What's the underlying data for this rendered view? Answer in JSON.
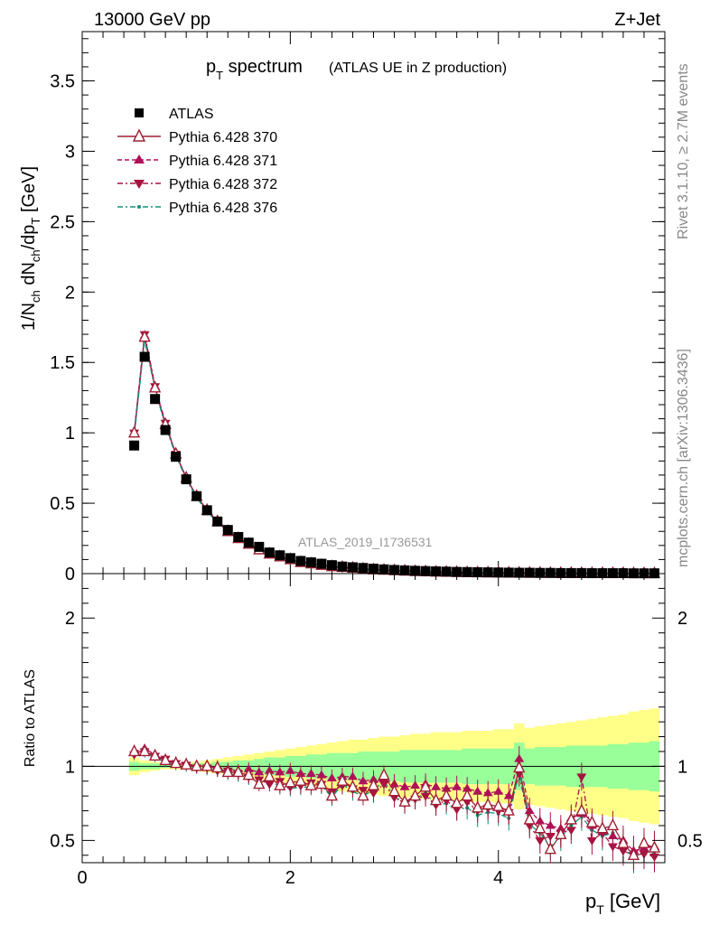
{
  "header": {
    "left": "13000 GeV pp",
    "right": "Z+Jet"
  },
  "side_labels": {
    "rivet": "Rivet 3.1.10, ≥ 2.7M events",
    "mcplots": "mcplots.cern.ch [arXiv:1306.3436]"
  },
  "analysis_id": "ATLAS_2019_I1736531",
  "colors": {
    "data": "#000000",
    "p370": "#a01f33",
    "p371": "#b0105a",
    "p372": "#a8123f",
    "p376": "#12907a",
    "band_inner": "#99ff99",
    "band_outer": "#ffff88"
  },
  "chart_data": [
    {
      "type": "scatter",
      "title_main": "p",
      "title_sub": "T",
      "title_rest": " spectrum",
      "title_note": "(ATLAS UE in Z production)",
      "ylabel": "1/N_ch dN_ch/dp_T [GeV]",
      "xlabel": "p_T [GeV]",
      "xlim": [
        0,
        5.6
      ],
      "ylim": [
        0,
        3.85
      ],
      "yticks": [
        "0",
        "0.5",
        "1",
        "1.5",
        "2",
        "2.5",
        "3",
        "3.5"
      ],
      "legend_position": "top-left",
      "x": [
        0.5,
        0.6,
        0.7,
        0.8,
        0.9,
        1.0,
        1.1,
        1.2,
        1.3,
        1.4,
        1.5,
        1.6,
        1.7,
        1.8,
        1.9,
        2.0,
        2.1,
        2.2,
        2.3,
        2.4,
        2.5,
        2.6,
        2.7,
        2.8,
        2.9,
        3.0,
        3.1,
        3.2,
        3.3,
        3.4,
        3.5,
        3.6,
        3.7,
        3.8,
        3.9,
        4.0,
        4.1,
        4.2,
        4.3,
        4.4,
        4.5,
        4.6,
        4.7,
        4.8,
        4.9,
        5.0,
        5.1,
        5.2,
        5.3,
        5.4,
        5.5
      ],
      "series": [
        {
          "name": "ATLAS",
          "values": [
            0.91,
            1.54,
            1.24,
            1.02,
            0.83,
            0.67,
            0.55,
            0.45,
            0.37,
            0.31,
            0.26,
            0.22,
            0.19,
            0.15,
            0.13,
            0.11,
            0.09,
            0.08,
            0.07,
            0.06,
            0.05,
            0.045,
            0.04,
            0.035,
            0.03,
            0.026,
            0.023,
            0.02,
            0.018,
            0.016,
            0.014,
            0.012,
            0.011,
            0.01,
            0.009,
            0.008,
            0.007,
            0.006,
            0.006,
            0.005,
            0.005,
            0.004,
            0.004,
            0.004,
            0.003,
            0.003,
            0.003,
            0.003,
            0.002,
            0.002,
            0.002
          ]
        },
        {
          "name": "Pythia 6.428 370",
          "values": [
            1.0,
            1.68,
            1.32,
            1.06,
            0.85,
            0.68,
            0.55,
            0.45,
            0.37,
            0.3,
            0.25,
            0.21,
            0.17,
            0.14,
            0.12,
            0.1,
            0.08,
            0.07,
            0.06,
            0.05,
            0.045,
            0.04,
            0.033,
            0.028,
            0.025,
            0.022,
            0.019,
            0.016,
            0.014,
            0.012,
            0.011,
            0.009,
            0.008,
            0.007,
            0.006,
            0.006,
            0.005,
            0.005,
            0.004,
            0.004,
            0.003,
            0.003,
            0.003,
            0.002,
            0.002,
            0.002,
            0.002,
            0.002,
            0.001,
            0.001,
            0.001
          ]
        },
        {
          "name": "Pythia 6.428 371",
          "values": [
            1.0,
            1.69,
            1.33,
            1.06,
            0.85,
            0.68,
            0.55,
            0.45,
            0.37,
            0.3,
            0.25,
            0.21,
            0.18,
            0.15,
            0.12,
            0.1,
            0.09,
            0.07,
            0.06,
            0.05,
            0.045,
            0.04,
            0.034,
            0.029,
            0.026,
            0.022,
            0.02,
            0.017,
            0.015,
            0.013,
            0.011,
            0.01,
            0.009,
            0.008,
            0.007,
            0.006,
            0.005,
            0.005,
            0.004,
            0.004,
            0.003,
            0.003,
            0.003,
            0.002,
            0.002,
            0.002,
            0.002,
            0.002,
            0.001,
            0.001,
            0.001
          ]
        },
        {
          "name": "Pythia 6.428 372",
          "values": [
            1.0,
            1.7,
            1.33,
            1.07,
            0.85,
            0.68,
            0.55,
            0.45,
            0.37,
            0.3,
            0.25,
            0.21,
            0.17,
            0.14,
            0.12,
            0.1,
            0.08,
            0.07,
            0.06,
            0.05,
            0.04,
            0.037,
            0.032,
            0.027,
            0.024,
            0.021,
            0.018,
            0.016,
            0.013,
            0.011,
            0.01,
            0.009,
            0.008,
            0.007,
            0.006,
            0.005,
            0.005,
            0.005,
            0.004,
            0.003,
            0.003,
            0.003,
            0.002,
            0.002,
            0.002,
            0.002,
            0.002,
            0.001,
            0.001,
            0.001,
            0.001
          ]
        },
        {
          "name": "Pythia 6.428 376",
          "values": [
            0.98,
            1.66,
            1.31,
            1.05,
            0.84,
            0.67,
            0.54,
            0.44,
            0.36,
            0.3,
            0.25,
            0.21,
            0.17,
            0.14,
            0.12,
            0.1,
            0.08,
            0.07,
            0.06,
            0.05,
            0.04,
            0.036,
            0.031,
            0.026,
            0.023,
            0.02,
            0.017,
            0.015,
            0.013,
            0.011,
            0.01,
            0.008,
            0.007,
            0.006,
            0.006,
            0.005,
            0.004,
            0.005,
            0.004,
            0.003,
            0.003,
            0.003,
            0.002,
            0.002,
            0.002,
            0.002,
            0.002,
            0.001,
            0.001,
            0.001,
            0.001
          ]
        }
      ]
    },
    {
      "type": "scatter",
      "ylabel": "Ratio to ATLAS",
      "xlim": [
        0,
        5.6
      ],
      "ylim": [
        0.35,
        2.3
      ],
      "yticks": [
        "0.5",
        "1",
        "2"
      ],
      "xticks": [
        "0",
        "2",
        "4"
      ],
      "x": [
        0.5,
        0.6,
        0.7,
        0.8,
        0.9,
        1.0,
        1.1,
        1.2,
        1.3,
        1.4,
        1.5,
        1.6,
        1.7,
        1.8,
        1.9,
        2.0,
        2.1,
        2.2,
        2.3,
        2.4,
        2.5,
        2.6,
        2.7,
        2.8,
        2.9,
        3.0,
        3.1,
        3.2,
        3.3,
        3.4,
        3.5,
        3.6,
        3.7,
        3.8,
        3.9,
        4.0,
        4.1,
        4.2,
        4.3,
        4.4,
        4.5,
        4.6,
        4.7,
        4.8,
        4.9,
        5.0,
        5.1,
        5.2,
        5.3,
        5.4,
        5.5
      ],
      "band_inner": {
        "lo": [
          0.97,
          0.98,
          0.98,
          0.99,
          0.99,
          0.99,
          0.98,
          0.98,
          0.97,
          0.97,
          0.96,
          0.96,
          0.95,
          0.94,
          0.94,
          0.93,
          0.93,
          0.92,
          0.92,
          0.91,
          0.91,
          0.91,
          0.9,
          0.9,
          0.9,
          0.9,
          0.89,
          0.89,
          0.89,
          0.89,
          0.89,
          0.89,
          0.88,
          0.88,
          0.88,
          0.88,
          0.88,
          0.84,
          0.88,
          0.87,
          0.87,
          0.87,
          0.86,
          0.86,
          0.86,
          0.86,
          0.85,
          0.85,
          0.84,
          0.84,
          0.83
        ],
        "hi": [
          1.03,
          1.02,
          1.02,
          1.01,
          1.01,
          1.01,
          1.02,
          1.02,
          1.03,
          1.03,
          1.04,
          1.04,
          1.05,
          1.06,
          1.06,
          1.07,
          1.07,
          1.08,
          1.08,
          1.09,
          1.09,
          1.09,
          1.1,
          1.1,
          1.1,
          1.1,
          1.11,
          1.11,
          1.11,
          1.11,
          1.11,
          1.11,
          1.12,
          1.12,
          1.12,
          1.12,
          1.12,
          1.16,
          1.12,
          1.13,
          1.13,
          1.13,
          1.14,
          1.14,
          1.14,
          1.14,
          1.15,
          1.15,
          1.16,
          1.16,
          1.17
        ]
      },
      "band_outer": {
        "lo": [
          0.94,
          0.96,
          0.97,
          0.98,
          0.98,
          0.98,
          0.97,
          0.96,
          0.95,
          0.94,
          0.93,
          0.92,
          0.91,
          0.9,
          0.89,
          0.88,
          0.87,
          0.86,
          0.85,
          0.84,
          0.83,
          0.82,
          0.82,
          0.81,
          0.8,
          0.8,
          0.79,
          0.78,
          0.78,
          0.77,
          0.77,
          0.77,
          0.76,
          0.76,
          0.76,
          0.75,
          0.75,
          0.71,
          0.74,
          0.73,
          0.72,
          0.71,
          0.7,
          0.69,
          0.68,
          0.67,
          0.66,
          0.65,
          0.63,
          0.62,
          0.61
        ],
        "hi": [
          1.06,
          1.04,
          1.03,
          1.02,
          1.02,
          1.02,
          1.03,
          1.04,
          1.05,
          1.06,
          1.07,
          1.08,
          1.09,
          1.1,
          1.11,
          1.12,
          1.13,
          1.14,
          1.15,
          1.16,
          1.17,
          1.18,
          1.18,
          1.19,
          1.2,
          1.2,
          1.21,
          1.22,
          1.22,
          1.23,
          1.23,
          1.23,
          1.24,
          1.24,
          1.24,
          1.25,
          1.25,
          1.29,
          1.26,
          1.27,
          1.28,
          1.29,
          1.3,
          1.31,
          1.32,
          1.33,
          1.34,
          1.35,
          1.37,
          1.38,
          1.39
        ]
      },
      "series": [
        {
          "name": "Pythia 6.428 370",
          "values": [
            1.1,
            1.1,
            1.07,
            1.04,
            1.02,
            1.01,
            1.0,
            1.0,
            0.99,
            0.96,
            0.96,
            0.94,
            0.88,
            0.93,
            0.87,
            0.89,
            0.9,
            0.87,
            0.88,
            0.8,
            0.9,
            0.86,
            0.8,
            0.87,
            0.94,
            0.83,
            0.76,
            0.8,
            0.86,
            0.77,
            0.8,
            0.75,
            0.8,
            0.72,
            0.74,
            0.73,
            0.7,
            0.99,
            0.64,
            0.58,
            0.44,
            0.54,
            0.64,
            0.7,
            0.62,
            0.58,
            0.6,
            0.48,
            0.4,
            0.48,
            0.45
          ]
        },
        {
          "name": "Pythia 6.428 371",
          "values": [
            1.1,
            1.12,
            1.08,
            1.04,
            1.03,
            1.02,
            1.0,
            0.99,
            1.0,
            0.98,
            0.97,
            0.98,
            0.96,
            0.97,
            0.96,
            0.97,
            0.95,
            0.95,
            0.94,
            0.92,
            0.93,
            0.93,
            0.9,
            0.91,
            0.92,
            0.88,
            0.86,
            0.87,
            0.88,
            0.86,
            0.85,
            0.86,
            0.85,
            0.83,
            0.82,
            0.83,
            0.8,
            1.05,
            0.7,
            0.63,
            0.6,
            0.58,
            0.65,
            0.68,
            0.6,
            0.56,
            0.53,
            0.5,
            0.43,
            0.45,
            0.46
          ]
        },
        {
          "name": "Pythia 6.428 372",
          "values": [
            1.08,
            1.1,
            1.07,
            1.05,
            1.02,
            1.01,
            0.99,
            0.99,
            0.97,
            0.97,
            0.95,
            0.93,
            0.91,
            0.88,
            0.9,
            0.86,
            0.87,
            0.89,
            0.88,
            0.83,
            0.87,
            0.85,
            0.84,
            0.82,
            0.88,
            0.79,
            0.75,
            0.78,
            0.8,
            0.74,
            0.77,
            0.71,
            0.76,
            0.7,
            0.72,
            0.7,
            0.69,
            0.95,
            0.6,
            0.5,
            0.53,
            0.55,
            0.57,
            0.93,
            0.5,
            0.55,
            0.46,
            0.43,
            0.4,
            0.41,
            0.39
          ]
        },
        {
          "name": "Pythia 6.428 376",
          "values": [
            1.07,
            1.09,
            1.06,
            1.03,
            1.01,
            1.0,
            0.99,
            0.98,
            0.97,
            0.95,
            0.94,
            0.92,
            0.9,
            0.91,
            0.86,
            0.85,
            0.86,
            0.86,
            0.87,
            0.79,
            0.88,
            0.83,
            0.8,
            0.84,
            0.9,
            0.8,
            0.75,
            0.78,
            0.82,
            0.74,
            0.75,
            0.71,
            0.72,
            0.67,
            0.69,
            0.68,
            0.65,
            0.97,
            0.61,
            0.55,
            0.46,
            0.52,
            0.6,
            0.66,
            0.57,
            0.53,
            0.55,
            0.45,
            0.38,
            0.43,
            0.41
          ]
        }
      ]
    }
  ]
}
